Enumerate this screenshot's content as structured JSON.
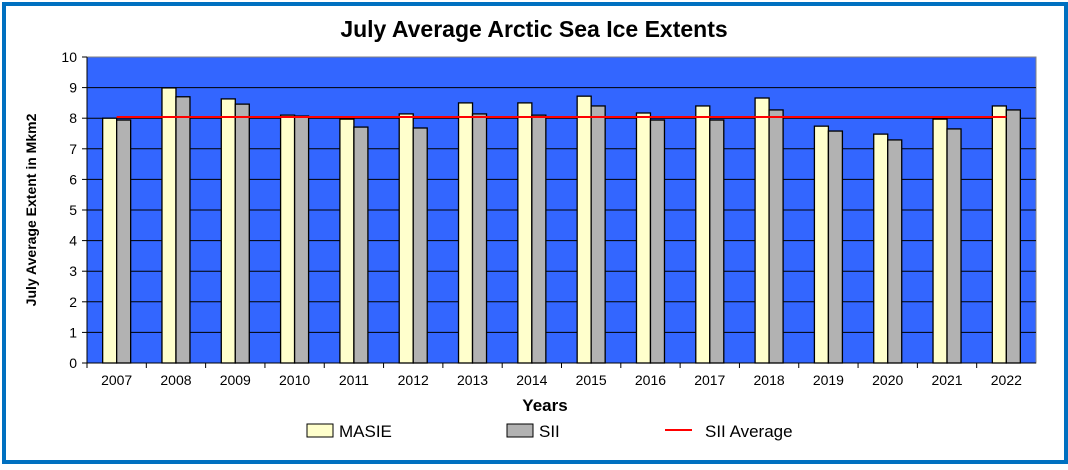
{
  "chart_data": {
    "type": "bar",
    "title": "July Average Arctic Sea Ice Extents",
    "xlabel": "Years",
    "ylabel": "July Average Extent in Mkm2",
    "ylim": [
      0,
      10
    ],
    "yticks": [
      0,
      1,
      2,
      3,
      4,
      5,
      6,
      7,
      8,
      9,
      10
    ],
    "grid": true,
    "legend_position": "bottom",
    "categories": [
      "2007",
      "2008",
      "2009",
      "2010",
      "2011",
      "2012",
      "2013",
      "2014",
      "2015",
      "2016",
      "2017",
      "2018",
      "2019",
      "2020",
      "2021",
      "2022"
    ],
    "series": [
      {
        "name": "MASIE",
        "color": "#ffffcc",
        "values": [
          8.0,
          8.99,
          8.63,
          8.1,
          7.97,
          8.14,
          8.5,
          8.5,
          8.72,
          8.17,
          8.4,
          8.66,
          7.74,
          7.48,
          7.97,
          8.4
        ]
      },
      {
        "name": "SII",
        "color": "#b2b2b2",
        "values": [
          7.94,
          8.7,
          8.46,
          8.07,
          7.71,
          7.68,
          8.14,
          8.1,
          8.4,
          7.94,
          7.94,
          8.27,
          7.58,
          7.29,
          7.65,
          8.27
        ]
      }
    ],
    "reference_line": {
      "name": "SII Average",
      "color": "#ff0000",
      "value": 8.04
    },
    "plot_background": "#3366ff"
  }
}
